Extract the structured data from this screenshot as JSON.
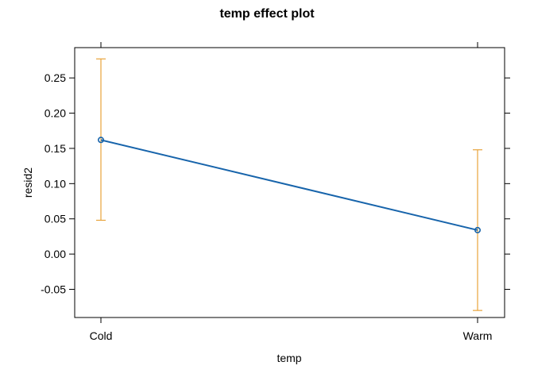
{
  "chart_data": {
    "type": "line",
    "title": "temp effect plot",
    "xlabel": "temp",
    "ylabel": "resid2",
    "categories": [
      "Cold",
      "Warm"
    ],
    "series": [
      {
        "values": [
          0.162,
          0.034
        ],
        "lower": [
          0.048,
          -0.08
        ],
        "upper": [
          0.277,
          0.148
        ]
      }
    ],
    "yticks": [
      -0.05,
      0.0,
      0.05,
      0.1,
      0.15,
      0.2,
      0.25
    ],
    "ytick_labels": [
      "-0.05",
      "0.00",
      "0.05",
      "0.10",
      "0.15",
      "0.20",
      "0.25"
    ],
    "ylim": [
      -0.09,
      0.293
    ],
    "grid": false,
    "colors": {
      "line": "#1764ab",
      "error_bar": "#e8a33a",
      "frame": "#000000"
    }
  }
}
